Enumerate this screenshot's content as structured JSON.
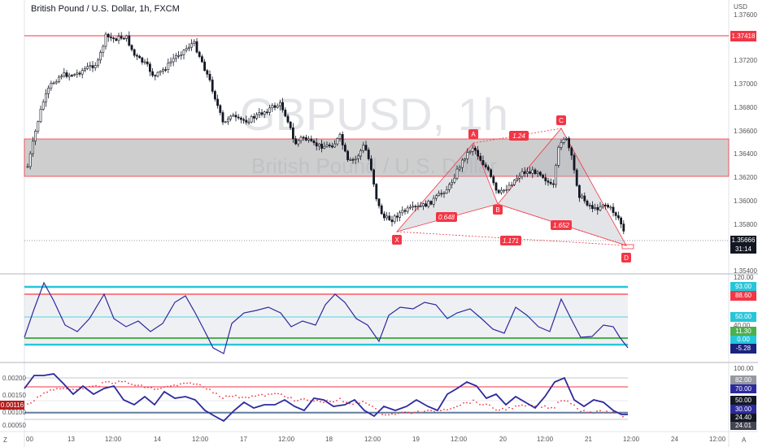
{
  "header": {
    "title": "British Pound / U.S. Dollar, 1h, FXCM",
    "currency": "USD"
  },
  "watermark": {
    "symbol": "GBPUSD, 1h",
    "name": "British Pound / U.S. Dollar"
  },
  "price_axis": {
    "ticks": [
      "1.37600",
      "1.37200",
      "1.37000",
      "1.36800",
      "1.36600",
      "1.36400",
      "1.36200",
      "1.36000",
      "1.35800",
      "1.35400"
    ],
    "resistance_label": "1.37418",
    "current_price": "1.35666",
    "countdown": "31:14"
  },
  "pattern": {
    "points": [
      "X",
      "A",
      "B",
      "C",
      "D"
    ],
    "ratios": {
      "xab": "0.648",
      "abc": "1.24",
      "bcd": "1.652",
      "xad": "1.171"
    }
  },
  "osc1": {
    "ticks": [
      "120.00",
      "40.00"
    ],
    "labels": [
      "93.00",
      "88.60",
      "50.00",
      "11.30",
      "0.00",
      "-5.28"
    ],
    "colors": [
      "#26c6da",
      "#f23645",
      "#26c6da",
      "#4caf50",
      "#26c6da",
      "#1a237e"
    ]
  },
  "osc2": {
    "left_ticks": [
      "0.00200",
      "0.00150",
      "0.00116",
      "0.00100",
      "0.00050"
    ],
    "right_ticks": [
      "100.00",
      "82.00",
      "70.00",
      "50.00",
      "30.00",
      "24.40",
      "24.01"
    ],
    "current": "0.00116"
  },
  "time_axis": {
    "labels": [
      "00",
      "13",
      "12:00",
      "14",
      "12:00",
      "17",
      "12:00",
      "18",
      "12:00",
      "19",
      "12:00",
      "20",
      "12:00",
      "21",
      "12:00",
      "24",
      "12:00"
    ],
    "corner": "A"
  }
}
